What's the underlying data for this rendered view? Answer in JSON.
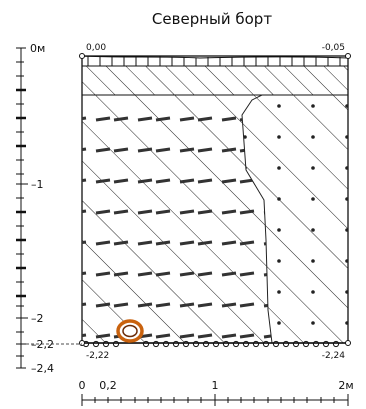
{
  "title": "Северный борт",
  "corner_labels": {
    "top_left": "0,00",
    "top_right": "-0,05",
    "bottom_left": "-2,22",
    "bottom_right": "-2,24"
  },
  "depth_axis": {
    "ticks": [
      "0м",
      "–1",
      "–2",
      "–2,2",
      "–2,4"
    ]
  },
  "width_axis": {
    "ticks": [
      "0",
      "0,2",
      "1",
      "2м"
    ]
  }
}
